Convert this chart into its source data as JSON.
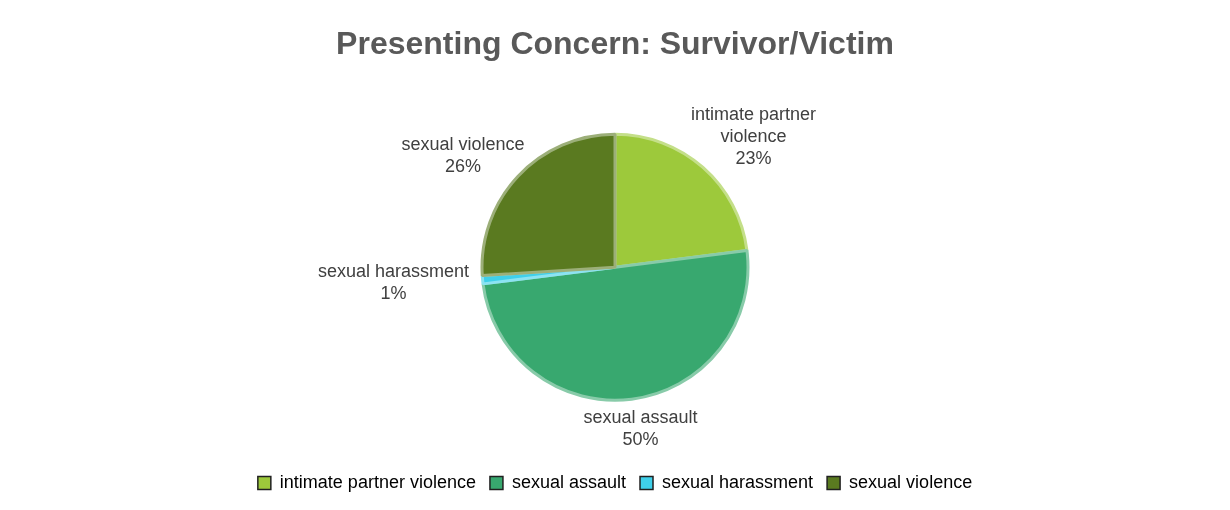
{
  "chart_data": {
    "type": "pie",
    "title": "Presenting Concern: Survivor/Victim",
    "categories": [
      "intimate partner violence",
      "sexual assault",
      "sexual harassment",
      "sexual violence"
    ],
    "values": [
      23,
      50,
      1,
      26
    ],
    "colors": [
      "#9dc93b",
      "#38a86f",
      "#3fd0ea",
      "#5a7a20"
    ],
    "value_labels": [
      "23%",
      "50%",
      "1%",
      "26%"
    ],
    "legend": "bottom"
  }
}
